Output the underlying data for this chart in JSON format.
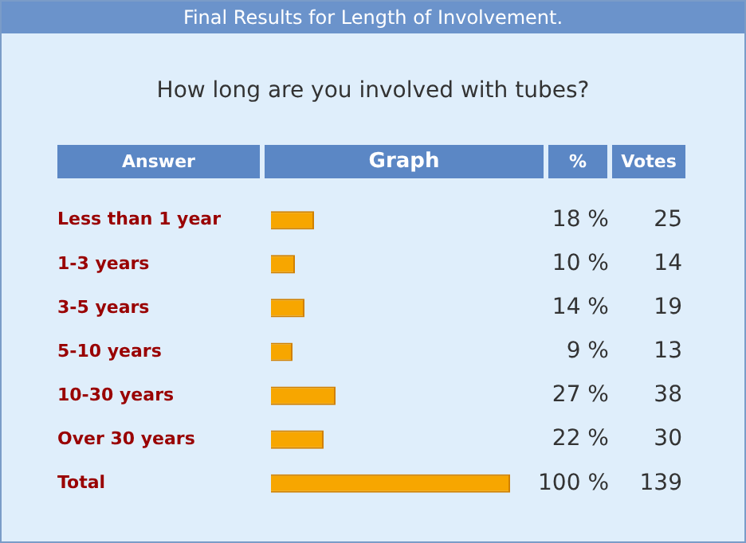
{
  "chart_data": {
    "type": "bar",
    "orientation": "horizontal",
    "title": "Final  Results for Length of Involvement.",
    "subtitle": "How long are you involved with tubes?",
    "categories": [
      "Less than 1 year",
      "1-3 years",
      "3-5 years",
      "5-10 years",
      "10-30 years",
      "Over 30 years",
      "Total"
    ],
    "series": [
      {
        "color": "#f7a600",
        "values": [
          18,
          10,
          14,
          9,
          27,
          22,
          100
        ],
        "value_labels": [
          "18 %",
          "10 %",
          "14 %",
          "9 %",
          "27 %",
          "22 %",
          "100 %"
        ]
      }
    ],
    "annotations": [
      "Answer",
      "Graph",
      "%",
      "Votes",
      "25",
      "14",
      "19",
      "13",
      "38",
      "30",
      "139"
    ],
    "grid": false,
    "legend": false
  }
}
